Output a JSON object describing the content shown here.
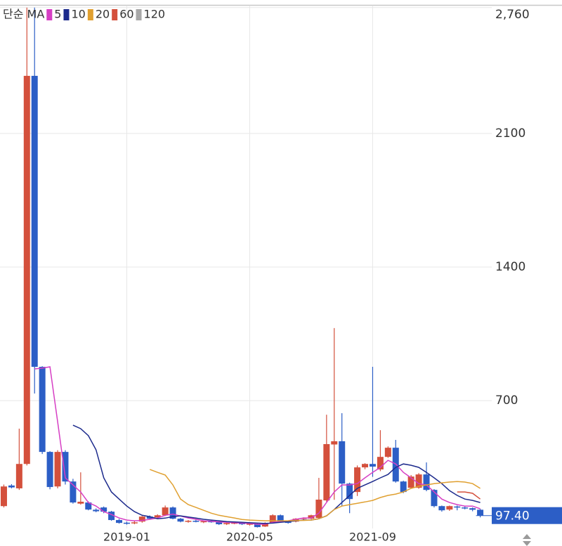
{
  "chart_data": {
    "type": "candlestick",
    "legend_title": "단순 MA",
    "categories": [
      null,
      null,
      null,
      null,
      null,
      null,
      null,
      null,
      null,
      null,
      null,
      null,
      null,
      null,
      null,
      null,
      "2019-01",
      null,
      null,
      null,
      null,
      null,
      null,
      null,
      null,
      null,
      null,
      null,
      null,
      null,
      null,
      null,
      "2020-05",
      null,
      null,
      null,
      null,
      null,
      null,
      null,
      null,
      null,
      null,
      null,
      null,
      null,
      null,
      null,
      "2021-09",
      null,
      null,
      null,
      null,
      null,
      null,
      null,
      null,
      null,
      null,
      null,
      null,
      null,
      null
    ],
    "open": [
      147,
      255,
      240,
      368,
      2402,
      877,
      431,
      250,
      431,
      276,
      160,
      166,
      128,
      140,
      118,
      74,
      60,
      58,
      66,
      92,
      88,
      99,
      140,
      81,
      66,
      70,
      66,
      68,
      66,
      52,
      58,
      60,
      52,
      52,
      40,
      59,
      99,
      66,
      66,
      81,
      81,
      85,
      177,
      470,
      487,
      265,
      221,
      350,
      368,
      339,
      405,
      453,
      276,
      243,
      243,
      313,
      232,
      147,
      129,
      145,
      140,
      136,
      128
    ],
    "high": [
      260,
      262,
      553,
      2760,
      2760,
      880,
      435,
      440,
      440,
      290,
      324,
      172,
      135,
      145,
      122,
      80,
      66,
      70,
      95,
      98,
      104,
      150,
      145,
      85,
      74,
      76,
      72,
      74,
      70,
      62,
      66,
      64,
      58,
      56,
      62,
      104,
      103,
      70,
      84,
      88,
      102,
      295,
      626,
      1080,
      634,
      270,
      360,
      372,
      877,
      545,
      460,
      494,
      280,
      310,
      320,
      376,
      236,
      150,
      150,
      150,
      144,
      140,
      132
    ],
    "low": [
      140,
      240,
      232,
      360,
      737,
      420,
      235,
      240,
      260,
      160,
      155,
      125,
      115,
      110,
      70,
      55,
      50,
      52,
      60,
      78,
      84,
      95,
      78,
      62,
      60,
      62,
      58,
      60,
      48,
      48,
      52,
      48,
      45,
      35,
      38,
      56,
      62,
      55,
      62,
      76,
      78,
      82,
      170,
      180,
      147,
      110,
      200,
      340,
      300,
      330,
      400,
      270,
      215,
      238,
      238,
      225,
      140,
      118,
      122,
      125,
      130,
      120,
      88
    ],
    "close": [
      250,
      245,
      368,
      2402,
      877,
      431,
      247,
      431,
      276,
      166,
      170,
      129,
      120,
      118,
      74,
      59,
      55,
      62,
      92,
      81,
      99,
      140,
      81,
      66,
      70,
      66,
      68,
      64,
      52,
      58,
      60,
      52,
      55,
      37,
      59,
      99,
      66,
      59,
      81,
      85,
      99,
      181,
      472,
      487,
      265,
      184,
      350,
      368,
      354,
      405,
      453,
      276,
      221,
      302,
      313,
      232,
      147,
      125,
      147,
      140,
      136,
      128,
      97.4
    ],
    "up_color": "#d4503c",
    "down_color": "#2c5ec6",
    "ma_series": [
      {
        "name": "5",
        "color": "#d63fc4",
        "values": [
          null,
          null,
          null,
          null,
          866,
          870,
          877,
          590,
          295,
          258,
          221,
          166,
          147,
          118,
          103,
          85,
          74,
          70,
          72,
          78,
          85,
          99,
          105,
          95,
          85,
          78,
          70,
          68,
          64,
          62,
          60,
          58,
          56,
          52,
          52,
          62,
          66,
          70,
          78,
          85,
          85,
          110,
          166,
          221,
          258,
          258,
          265,
          295,
          324,
          350,
          387,
          368,
          324,
          295,
          265,
          258,
          221,
          184,
          166,
          155,
          147,
          147,
          133
        ]
      },
      {
        "name": "10",
        "color": "#1c2a8c",
        "values": [
          null,
          null,
          null,
          null,
          null,
          null,
          null,
          null,
          null,
          571,
          553,
          516,
          442,
          295,
          221,
          184,
          147,
          118,
          99,
          92,
          81,
          84,
          92,
          96,
          90,
          84,
          78,
          74,
          70,
          66,
          64,
          62,
          60,
          58,
          56,
          58,
          62,
          66,
          70,
          74,
          74,
          81,
          96,
          129,
          166,
          203,
          240,
          258,
          276,
          295,
          313,
          350,
          368,
          361,
          350,
          324,
          295,
          265,
          228,
          203,
          184,
          177,
          166
        ]
      },
      {
        "name": "20",
        "color": "#e0a030",
        "values": [
          null,
          null,
          null,
          null,
          null,
          null,
          null,
          null,
          null,
          null,
          null,
          null,
          null,
          null,
          null,
          null,
          null,
          null,
          null,
          339,
          324,
          310,
          258,
          184,
          155,
          140,
          125,
          110,
          99,
          92,
          85,
          77,
          74,
          72,
          70,
          70,
          70,
          70,
          72,
          72,
          74,
          81,
          96,
          129,
          147,
          155,
          162,
          169,
          177,
          192,
          203,
          210,
          221,
          240,
          251,
          258,
          265,
          269,
          273,
          276,
          273,
          265,
          240
        ]
      },
      {
        "name": "60",
        "color": "#d4503c",
        "values": [
          null,
          null,
          null,
          null,
          null,
          null,
          null,
          null,
          null,
          null,
          null,
          null,
          null,
          null,
          null,
          null,
          null,
          null,
          null,
          null,
          null,
          null,
          null,
          null,
          null,
          null,
          null,
          null,
          null,
          null,
          null,
          null,
          null,
          null,
          null,
          null,
          null,
          null,
          null,
          null,
          null,
          null,
          null,
          null,
          null,
          null,
          null,
          null,
          null,
          null,
          null,
          null,
          null,
          null,
          null,
          null,
          null,
          null,
          null,
          221,
          221,
          214,
          184
        ]
      },
      {
        "name": "120",
        "color": "#a8a8a8",
        "values": [
          null,
          null,
          null,
          null,
          null,
          null,
          null,
          null,
          null,
          null,
          null,
          null,
          null,
          null,
          null,
          null,
          null,
          null,
          null,
          null,
          null,
          null,
          null,
          null,
          null,
          null,
          null,
          null,
          null,
          null,
          null,
          null,
          null,
          null,
          null,
          null,
          null,
          null,
          null,
          null,
          null,
          null,
          null,
          null,
          null,
          null,
          null,
          null,
          null,
          null,
          null,
          null,
          null,
          null,
          null,
          null,
          null,
          null,
          null,
          null,
          null,
          null,
          null
        ]
      }
    ],
    "ylim": [
      30,
      2770
    ],
    "yticks": [
      700,
      1400,
      2100,
      {
        "value": 2760,
        "label": "2,760"
      }
    ],
    "current_price": {
      "value": 97.4,
      "label": "97.40"
    },
    "current_color": "#2c5ec6",
    "grid": true
  }
}
